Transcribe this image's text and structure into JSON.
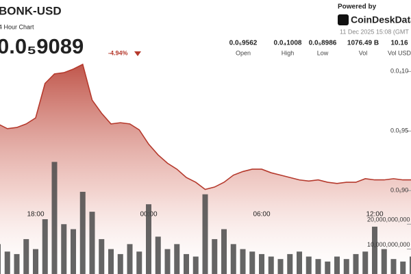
{
  "header": {
    "title": "BONK-USD",
    "subtitle": "4 Hour Chart",
    "price": "0.0₅9089",
    "change": "-4.94%",
    "powered_by": "Powered by",
    "brand": "CoinDeskData",
    "timestamp": "11 Dec 2025 15:08 (GMT",
    "stats": [
      {
        "value": "0.0₅9562",
        "label": "Open"
      },
      {
        "value": "0.0₄1008",
        "label": "High"
      },
      {
        "value": "0.0₅8986",
        "label": "Low"
      },
      {
        "value": "1076.49 B",
        "label": "Vol"
      },
      {
        "value": "10.16",
        "label": "Vol USD"
      }
    ]
  },
  "chart_data": [
    {
      "type": "line",
      "color": "#b5392c",
      "categories": [
        null,
        null,
        null,
        null,
        "18:00",
        null,
        null,
        null,
        null,
        null,
        null,
        null,
        null,
        null,
        null,
        null,
        "00:00",
        null,
        null,
        null,
        null,
        null,
        null,
        null,
        null,
        null,
        null,
        null,
        "06:00",
        null,
        null,
        null,
        null,
        null,
        null,
        null,
        null,
        null,
        null,
        null,
        "12:00",
        null,
        null,
        null,
        null
      ],
      "values": [
        9.56e-06,
        9.52e-06,
        9.53e-06,
        9.56e-06,
        9.61e-06,
        9.9e-06,
        9.98e-06,
        9.99e-06,
        1.002e-05,
        1.006e-05,
        9.76e-06,
        9.65e-06,
        9.56e-06,
        9.57e-06,
        9.56e-06,
        9.51e-06,
        9.39e-06,
        9.3e-06,
        9.23e-06,
        9.18e-06,
        9.11e-06,
        9.07e-06,
        9.01e-06,
        9.03e-06,
        9.07e-06,
        9.13e-06,
        9.16e-06,
        9.18e-06,
        9.18e-06,
        9.15e-06,
        9.13e-06,
        9.11e-06,
        9.09e-06,
        9.08e-06,
        9.09e-06,
        9.07e-06,
        9.06e-06,
        9.07e-06,
        9.07e-06,
        9.1e-06,
        9.09e-06,
        9.09e-06,
        9.1e-06,
        9.09e-06,
        9.09e-06
      ],
      "ylim": [
        8.3e-06,
        1.06e-05
      ],
      "yticks": [
        {
          "value": 1e-05,
          "label": "0.0₄10"
        },
        {
          "value": 9.5e-06,
          "label": "0.0₅95"
        },
        {
          "value": 9e-06,
          "label": "0.0₅90"
        }
      ]
    },
    {
      "type": "bar",
      "color": "#4a4a4a",
      "values": [
        12000000000,
        9000000000,
        8000000000,
        14000000000,
        10000000000,
        22000000000,
        45000000000,
        20000000000,
        18000000000,
        33000000000,
        25000000000,
        14000000000,
        10000000000,
        8000000000,
        12000000000,
        9000000000,
        28000000000,
        15000000000,
        10000000000,
        12000000000,
        8000000000,
        7000000000,
        32000000000,
        14000000000,
        18000000000,
        12000000000,
        10000000000,
        9000000000,
        8000000000,
        7000000000,
        6000000000,
        8000000000,
        9000000000,
        7000000000,
        6000000000,
        5000000000,
        7000000000,
        6000000000,
        8000000000,
        9000000000,
        19000000000,
        10000000000,
        6000000000,
        5000000000,
        7000000000
      ],
      "ylim": [
        0,
        110000000000
      ],
      "yticks": [
        {
          "value": 10000000000,
          "label": "10,000,000,000"
        },
        {
          "value": 20000000000,
          "label": "20,000,000,000"
        }
      ]
    }
  ]
}
